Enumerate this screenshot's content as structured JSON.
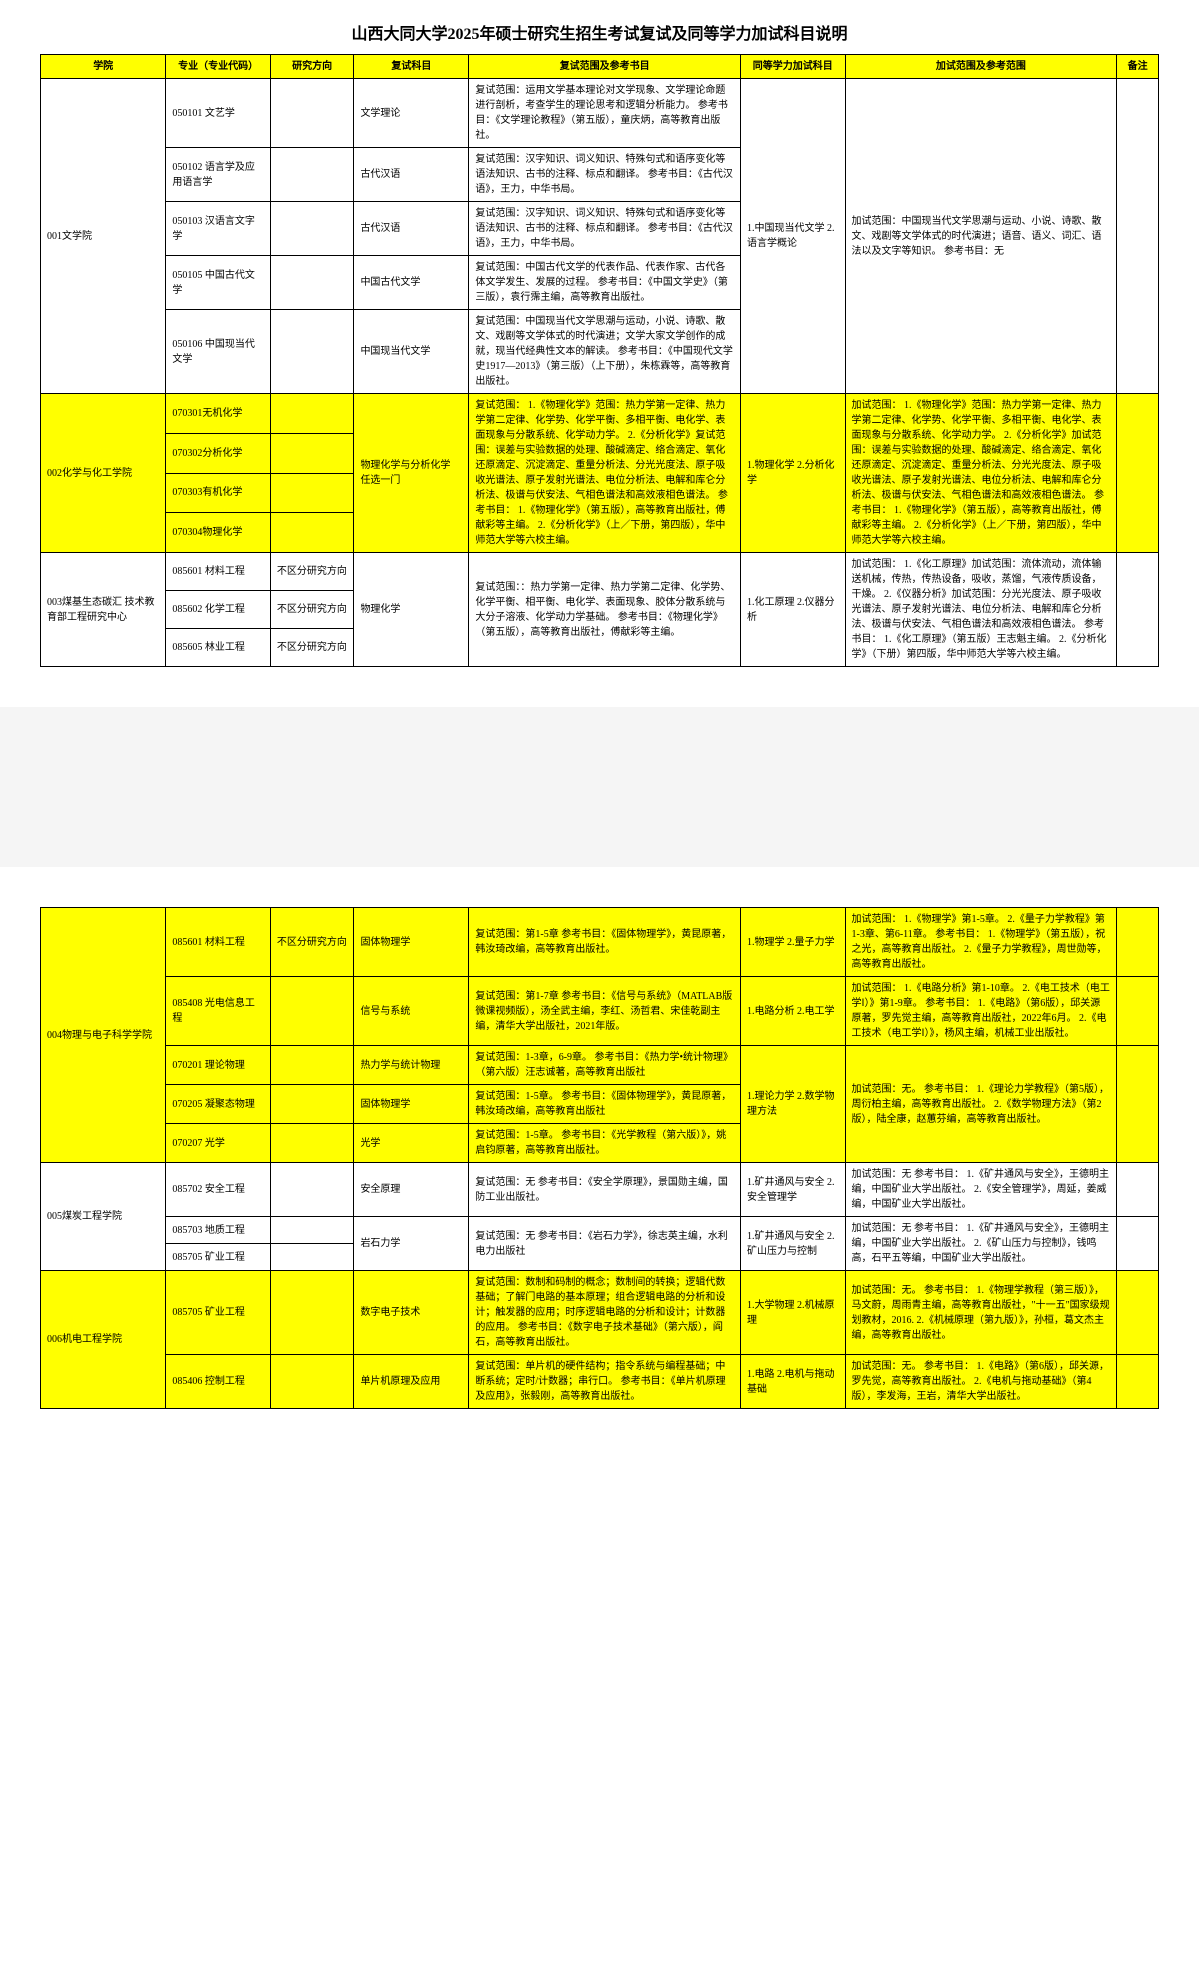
{
  "title": "山西大同大学2025年硕士研究生招生考试复试及同等学力加试科目说明",
  "headers": [
    "学院",
    "专业（专业代码）",
    "研究方向",
    "复试科目",
    "复试范围及参考书目",
    "同等学力加试科目",
    "加试范围及参考范围",
    "备注"
  ],
  "tbl1": {
    "r1": {
      "college": "001文学院",
      "major": "050101\n文艺学",
      "subj": "文学理论",
      "scope": "复试范围：运用文学基本理论对文学现象、文学理论命题进行剖析，考查学生的理论思考和逻辑分析能力。\n参考书目：《文学理论教程》（第五版），童庆炳，高等教育出版社。",
      "extra": "1.中国现当代文学\n2.语言学概论",
      "extraScope": "加试范围：中国现当代文学思潮与运动、小说、诗歌、散文、戏剧等文学体式的时代演进；语音、语义、词汇、语法以及文字等知识。\n参考书目：无"
    },
    "r2": {
      "major": "050102\n语言学及应用语言学",
      "subj": "古代汉语",
      "scope": "复试范围：汉字知识、词义知识、特殊句式和语序变化等语法知识、古书的注释、标点和翻译。\n参考书目：《古代汉语》，王力，中华书局。"
    },
    "r3": {
      "major": "050103\n汉语言文字学",
      "subj": "古代汉语",
      "scope": "复试范围：汉字知识、词义知识、特殊句式和语序变化等语法知识、古书的注释、标点和翻译。\n参考书目：《古代汉语》，王力，中华书局。"
    },
    "r4": {
      "major": "050105\n中国古代文学",
      "subj": "中国古代文学",
      "scope": "复试范围：中国古代文学的代表作品、代表作家、古代各体文学发生、发展的过程。\n参考书目：《中国文学史》（第三版），袁行霈主编，高等教育出版社。"
    },
    "r5": {
      "major": "050106\n中国现当代文学",
      "subj": "中国现当代文学",
      "scope": "复试范围：中国现当代文学思潮与运动，小说、诗歌、散文、戏剧等文学体式的时代演进；文学大家文学创作的成就，现当代经典性文本的解读。\n参考书目：《中国现代文学史1917—2013》（第三版）（上下册），朱栋霖等，高等教育出版社。"
    },
    "r6": {
      "college": "002化学与化工学院",
      "major": "070301无机化学",
      "subj": "物理化学与分析化学\n任选一门",
      "scope": "复试范围：\n1.《物理化学》范围：热力学第一定律、热力学第二定律、化学势、化学平衡、多相平衡、电化学、表面现象与分散系统、化学动力学。\n2.《分析化学》复试范围：误差与实验数据的处理、酸碱滴定、络合滴定、氧化还原滴定、沉淀滴定、重量分析法、分光光度法、原子吸收光谱法、原子发射光谱法、电位分析法、电解和库仑分析法、极谱与伏安法、气相色谱法和高效液相色谱法。\n参考书目：\n1.《物理化学》（第五版），高等教育出版社，傅献彩等主编。\n2.《分析化学》（上／下册，第四版），华中师范大学等六校主编。",
      "extra": "1.物理化学\n2.分析化学",
      "extraScope": "加试范围：\n1.《物理化学》范围：热力学第一定律、热力学第二定律、化学势、化学平衡、多相平衡、电化学、表面现象与分散系统、化学动力学。\n2.《分析化学》加试范围：误差与实验数据的处理、酸碱滴定、络合滴定、氧化还原滴定、沉淀滴定、重量分析法、分光光度法、原子吸收光谱法、原子发射光谱法、电位分析法、电解和库仑分析法、极谱与伏安法、气相色谱法和高效液相色谱法。\n参考书目：\n1.《物理化学》（第五版），高等教育出版社，傅献彩等主编。\n2.《分析化学》（上／下册，第四版），华中师范大学等六校主编。"
    },
    "r7": {
      "major": "070302分析化学"
    },
    "r8": {
      "major": "070303有机化学"
    },
    "r9": {
      "major": "070304物理化学"
    },
    "r10": {
      "college": "003煤基生态碳汇\n技术教育部工程研究中心",
      "major": "085601\n材料工程",
      "dir": "不区分研究方向",
      "subj": "物理化学",
      "scope": "复试范围：：热力学第一定律、热力学第二定律、化学势、化学平衡、相平衡、电化学、表面现象、胶体分散系统与大分子溶液、化学动力学基础。\n参考书目：《物理化学》（第五版），高等教育出版社，傅献彩等主编。",
      "extra": "1.化工原理\n2.仪器分析",
      "extraScope": "加试范围：\n1.《化工原理》加试范围：流体流动，流体输送机械，传热，传热设备，吸收，蒸馏，气液传质设备，干燥。\n2.《仪器分析》加试范围：分光光度法、原子吸收光谱法、原子发射光谱法、电位分析法、电解和库仑分析法、极谱与伏安法、气相色谱法和高效液相色谱法。\n参考书目：\n1.《化工原理》（第五版）王志魁主编。\n2.《分析化学》（下册）第四版，华中师范大学等六校主编。"
    },
    "r11": {
      "major": "085602\n化学工程",
      "dir": "不区分研究方向"
    },
    "r12": {
      "major": "085605\n林业工程",
      "dir": "不区分研究方向"
    }
  },
  "tbl2": {
    "r1": {
      "college": "004物理与电子科学学院",
      "major": "085601\n材料工程",
      "dir": "不区分研究方向",
      "subj": "固体物理学",
      "scope": "复试范围：第1-5章\n参考书目：《固体物理学》，黄昆原著，韩汝琦改编，高等教育出版社。",
      "extra": "1.物理学\n2.量子力学",
      "extraScope": "加试范围：\n1.《物理学》第1-5章。\n2.《量子力学教程》第1-3章、第6-11章。\n参考书目：\n1.《物理学》（第五版），祝之光，高等教育出版社。\n2.《量子力学教程》，周世勋等，高等教育出版社。"
    },
    "r2": {
      "major": "085408\n光电信息工程",
      "subj": "信号与系统",
      "scope": "复试范围：第1-7章\n参考书目：《信号与系统》（MATLAB版 微课视频版），汤全武主编，李红、汤哲君、宋佳乾副主编，清华大学出版社，2021年版。",
      "extra": "1.电路分析\n2.电工学",
      "extraScope": "加试范围：\n1.《电路分析》第1-10章。\n2.《电工技术（电工学Ⅰ）》第1-9章。\n参考书目：\n1.《电路》（第6版），邱关源原著，罗先觉主编，高等教育出版社，2022年6月。\n2.《电工技术（电工学Ⅰ）》，杨风主编，机械工业出版社。"
    },
    "r3": {
      "major": "070201\n理论物理",
      "subj": "热力学与统计物理",
      "scope": "复试范围：1-3章，6-9章。\n参考书目：《热力学•统计物理》（第六版）汪志诚著，高等教育出版社",
      "extra": "1.理论力学\n2.数学物理方法",
      "extraScope": "加试范围：无。\n参考书目：\n1.《理论力学教程》（第5版），周衍柏主编，高等教育出版社。\n2.《数学物理方法》（第2版），陆全康，赵蕙芬编，高等教育出版社。"
    },
    "r4": {
      "major": "070205\n凝聚态物理",
      "subj": "固体物理学",
      "scope": "复试范围：1-5章。\n参考书目：《固体物理学》，黄昆原著，韩汝琦改编，高等教育出版社"
    },
    "r5": {
      "major": "070207\n光学",
      "subj": "光学",
      "scope": "复试范围：1-5章。\n参考书目：《光学教程（第六版）》，姚启钧原著，高等教育出版社。"
    },
    "r6": {
      "college": "005煤炭工程学院",
      "major": "085702\n安全工程",
      "subj": "安全原理",
      "scope": "复试范围：无\n参考书目：《安全学原理》，景国勋主编，国防工业出版社。",
      "extra": "1.矿井通风与安全\n2.安全管理学",
      "extraScope": "加试范围：无\n参考书目：\n1.《矿井通风与安全》，王德明主编，中国矿业大学出版社。\n2.《安全管理学》，周延，姜威编，中国矿业大学出版社。"
    },
    "r7": {
      "major": "085703\n地质工程",
      "subj": "岩石力学",
      "scope": "复试范围：无\n参考书目：《岩石力学》，徐志英主编，水利电力出版社",
      "extra": "1.矿井通风与安全\n2.矿山压力与控制",
      "extraScope": "加试范围：无\n参考书目：\n1.《矿井通风与安全》，王德明主编，中国矿业大学出版社。\n2.《矿山压力与控制》，钱鸣高，石平五等编，中国矿业大学出版社。"
    },
    "r8": {
      "major": "085705\n矿业工程"
    },
    "r9": {
      "college": "006机电工程学院",
      "major": "085705\n矿业工程",
      "subj": "数字电子技术",
      "scope": "复试范围：数制和码制的概念；数制间的转换；逻辑代数基础；了解门电路的基本原理；组合逻辑电路的分析和设计；触发器的应用；时序逻辑电路的分析和设计；计数器的应用。\n参考书目：《数字电子技术基础》（第六版），阎石，高等教育出版社。",
      "extra": "1.大学物理\n2.机械原理",
      "extraScope": "加试范围：无。\n参考书目：\n1.《物理学教程（第三版）》，马文蔚，周雨青主编，高等教育出版社，\"十一五\"国家级规划教材，2016.\n2.《机械原理（第九版）》，孙桓，葛文杰主编，高等教育出版社。"
    },
    "r10": {
      "major": "085406\n控制工程",
      "subj": "单片机原理及应用",
      "scope": "复试范围：单片机的硬件结构；指令系统与编程基础；中断系统；定时/计数器；串行口。\n参考书目：《单片机原理及应用》，张毅刚，高等教育出版社。",
      "extra": "1.电路\n2.电机与拖动基础",
      "extraScope": "加试范围：无。\n参考书目：\n1.《电路》（第6版），邱关源，罗先觉，高等教育出版社。\n2.《电机与拖动基础》（第4版），李发海，王岩，清华大学出版社。"
    }
  }
}
